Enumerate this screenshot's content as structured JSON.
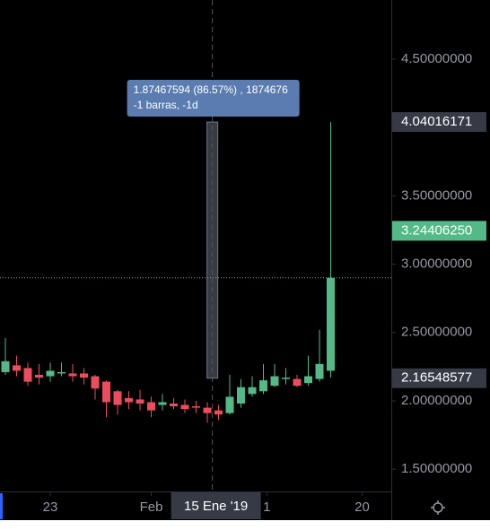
{
  "chart_data": {
    "type": "candlestick",
    "up_color": "#53b987",
    "down_color": "#eb4d5c",
    "candles": [
      [
        2.21,
        2.46,
        2.19,
        2.29
      ],
      [
        2.26,
        2.33,
        2.18,
        2.22
      ],
      [
        2.24,
        2.28,
        2.11,
        2.14
      ],
      [
        2.19,
        2.27,
        2.12,
        2.17
      ],
      [
        2.18,
        2.28,
        2.14,
        2.22
      ],
      [
        2.2,
        2.28,
        2.18,
        2.21
      ],
      [
        2.2,
        2.27,
        2.14,
        2.18
      ],
      [
        2.2,
        2.24,
        2.12,
        2.17
      ],
      [
        2.18,
        2.19,
        2.01,
        2.09
      ],
      [
        2.14,
        2.15,
        1.88,
        1.99
      ],
      [
        2.07,
        2.08,
        1.9,
        1.97
      ],
      [
        2.02,
        2.07,
        1.94,
        1.99
      ],
      [
        2.01,
        2.08,
        1.93,
        1.98
      ],
      [
        1.99,
        2.03,
        1.88,
        1.93
      ],
      [
        1.97,
        2.05,
        1.93,
        1.99
      ],
      [
        1.98,
        2.02,
        1.94,
        1.96
      ],
      [
        1.97,
        2.01,
        1.91,
        1.94
      ],
      [
        1.96,
        2.0,
        1.91,
        1.95
      ],
      [
        1.95,
        1.99,
        1.84,
        1.91
      ],
      [
        1.93,
        1.97,
        1.86,
        1.9
      ],
      [
        1.91,
        2.19,
        1.9,
        2.03
      ],
      [
        1.98,
        2.16,
        1.95,
        2.1
      ],
      [
        2.05,
        2.18,
        2.03,
        2.1
      ],
      [
        2.07,
        2.27,
        2.05,
        2.15
      ],
      [
        2.11,
        2.27,
        2.1,
        2.18
      ],
      [
        2.16,
        2.24,
        2.12,
        2.17
      ],
      [
        2.16,
        2.19,
        2.1,
        2.11
      ],
      [
        2.13,
        2.33,
        2.11,
        2.18
      ],
      [
        2.16,
        2.52,
        2.14,
        2.27
      ],
      [
        2.22,
        4.04,
        2.17,
        2.9
      ]
    ],
    "xlim": [
      -0.48,
      34.4
    ],
    "xticks": [
      {
        "value": 4,
        "label": "23"
      },
      {
        "value": 13,
        "label": "Feb"
      },
      {
        "value": 23.3,
        "label": "1"
      },
      {
        "value": 31.8,
        "label": "20"
      }
    ],
    "ylim": [
      1.337,
      4.933
    ],
    "yticks": [
      {
        "value": 1.5,
        "label": "1.50000000"
      },
      {
        "value": 2,
        "label": "2.00000000"
      },
      {
        "value": 2.5,
        "label": "2.50000000"
      },
      {
        "value": 3,
        "label": "3.00000000"
      },
      {
        "value": 3.5,
        "label": "3.50000000"
      },
      {
        "value": 4,
        "label": "4.00000000"
      },
      {
        "value": 4.5,
        "label": "4.50000000"
      }
    ],
    "price_labels": [
      {
        "value": 4.04016171,
        "color": "#363a45"
      },
      {
        "value": 3.2440625,
        "label": "3.24406250",
        "color": "#53b987"
      },
      {
        "value": 2.16548577,
        "color": "#363a45"
      }
    ],
    "crosshair": {
      "x": 18.45,
      "label": "15 Ene '19"
    },
    "measure": {
      "from": 4.04016171,
      "to": 2.16548577,
      "lines": [
        "1.87467594 (86.57%) , 1874676",
        "-1 barras, -1d"
      ]
    }
  }
}
